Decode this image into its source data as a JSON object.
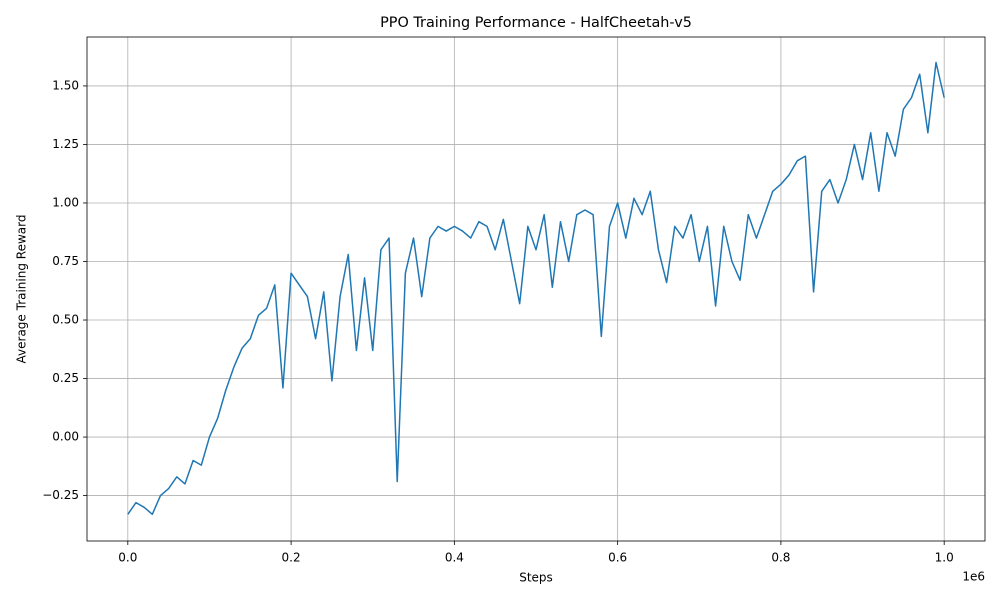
{
  "chart_data": {
    "type": "line",
    "title": "PPO Training Performance - HalfCheetah-v5",
    "x_label": "Steps",
    "y_label": "Average Training Reward",
    "x_offset_label": "1e6",
    "x": [
      0,
      10000,
      20000,
      30000,
      40000,
      50000,
      60000,
      70000,
      80000,
      90000,
      100000,
      110000,
      120000,
      130000,
      140000,
      150000,
      160000,
      170000,
      180000,
      190000,
      200000,
      210000,
      220000,
      230000,
      240000,
      250000,
      260000,
      270000,
      280000,
      290000,
      300000,
      310000,
      320000,
      330000,
      340000,
      350000,
      360000,
      370000,
      380000,
      390000,
      400000,
      410000,
      420000,
      430000,
      440000,
      450000,
      460000,
      470000,
      480000,
      490000,
      500000,
      510000,
      520000,
      530000,
      540000,
      550000,
      560000,
      570000,
      580000,
      590000,
      600000,
      610000,
      620000,
      630000,
      640000,
      650000,
      660000,
      670000,
      680000,
      690000,
      700000,
      710000,
      720000,
      730000,
      740000,
      750000,
      760000,
      770000,
      780000,
      790000,
      800000,
      810000,
      820000,
      830000,
      840000,
      850000,
      860000,
      870000,
      880000,
      890000,
      900000,
      910000,
      920000,
      930000,
      940000,
      950000,
      960000,
      970000,
      980000,
      990000,
      1000000
    ],
    "series": [
      {
        "name": "Average Training Reward",
        "color": "#1f77b4",
        "values": [
          -0.33,
          -0.28,
          -0.3,
          -0.33,
          -0.25,
          -0.22,
          -0.17,
          -0.2,
          -0.1,
          -0.12,
          0.0,
          0.08,
          0.2,
          0.3,
          0.38,
          0.42,
          0.52,
          0.55,
          0.65,
          0.21,
          0.7,
          0.65,
          0.6,
          0.42,
          0.62,
          0.24,
          0.6,
          0.78,
          0.37,
          0.68,
          0.37,
          0.8,
          0.85,
          -0.19,
          0.7,
          0.85,
          0.6,
          0.85,
          0.9,
          0.88,
          0.9,
          0.88,
          0.85,
          0.92,
          0.9,
          0.8,
          0.93,
          0.75,
          0.57,
          0.9,
          0.8,
          0.95,
          0.64,
          0.92,
          0.75,
          0.95,
          0.97,
          0.95,
          0.43,
          0.9,
          1.0,
          0.85,
          1.02,
          0.95,
          1.05,
          0.8,
          0.66,
          0.9,
          0.85,
          0.95,
          0.75,
          0.9,
          0.56,
          0.9,
          0.75,
          0.67,
          0.95,
          0.85,
          0.95,
          1.05,
          1.08,
          1.12,
          1.18,
          1.2,
          0.62,
          1.05,
          1.1,
          1.0,
          1.1,
          1.25,
          1.1,
          1.3,
          1.05,
          1.3,
          1.2,
          1.4,
          1.45,
          1.55,
          1.3,
          1.6,
          1.45
        ]
      }
    ],
    "xlim": [
      -50000,
      1050000
    ],
    "xticks": [
      {
        "value": 0,
        "label": "0.0"
      },
      {
        "value": 200000,
        "label": "0.2"
      },
      {
        "value": 400000,
        "label": "0.4"
      },
      {
        "value": 600000,
        "label": "0.6"
      },
      {
        "value": 800000,
        "label": "0.8"
      },
      {
        "value": 1000000,
        "label": "1.0"
      }
    ],
    "ylim": [
      -0.444,
      1.709
    ],
    "yticks": [
      {
        "value": -0.25,
        "label": "−0.25"
      },
      {
        "value": 0,
        "label": "0.00"
      },
      {
        "value": 0.25,
        "label": "0.25"
      },
      {
        "value": 0.5,
        "label": "0.50"
      },
      {
        "value": 0.75,
        "label": "0.75"
      },
      {
        "value": 1,
        "label": "1.00"
      },
      {
        "value": 1.25,
        "label": "1.25"
      },
      {
        "value": 1.5,
        "label": "1.50"
      }
    ],
    "grid": true
  }
}
